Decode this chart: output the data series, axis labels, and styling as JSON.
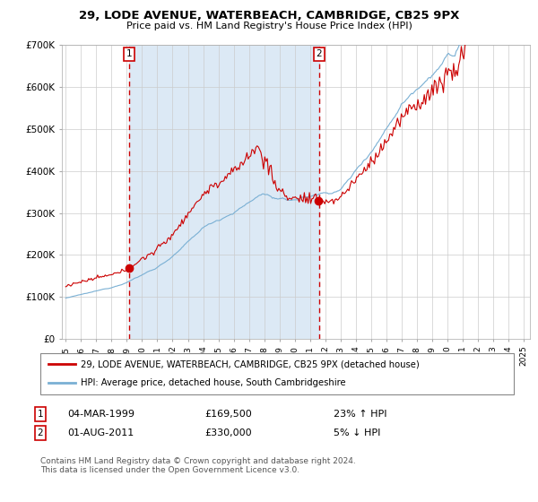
{
  "title": "29, LODE AVENUE, WATERBEACH, CAMBRIDGE, CB25 9PX",
  "subtitle": "Price paid vs. HM Land Registry's House Price Index (HPI)",
  "legend_line1": "29, LODE AVENUE, WATERBEACH, CAMBRIDGE, CB25 9PX (detached house)",
  "legend_line2": "HPI: Average price, detached house, South Cambridgeshire",
  "annotation1_date": "04-MAR-1999",
  "annotation1_price": "£169,500",
  "annotation1_hpi": "23% ↑ HPI",
  "annotation1_year": 1999.17,
  "annotation2_date": "01-AUG-2011",
  "annotation2_price": "£330,000",
  "annotation2_hpi": "5% ↓ HPI",
  "annotation2_year": 2011.58,
  "footnote": "Contains HM Land Registry data © Crown copyright and database right 2024.\nThis data is licensed under the Open Government Licence v3.0.",
  "bg_color": "#dce9f5",
  "plot_bg": "#ffffff",
  "grid_color": "#cccccc",
  "hpi_color": "#7ab0d4",
  "price_color": "#cc0000",
  "dot_color": "#cc0000",
  "dashed_color": "#cc0000",
  "ylim": [
    0,
    700000
  ],
  "xlim_start": 1994.75,
  "xlim_end": 2025.4
}
